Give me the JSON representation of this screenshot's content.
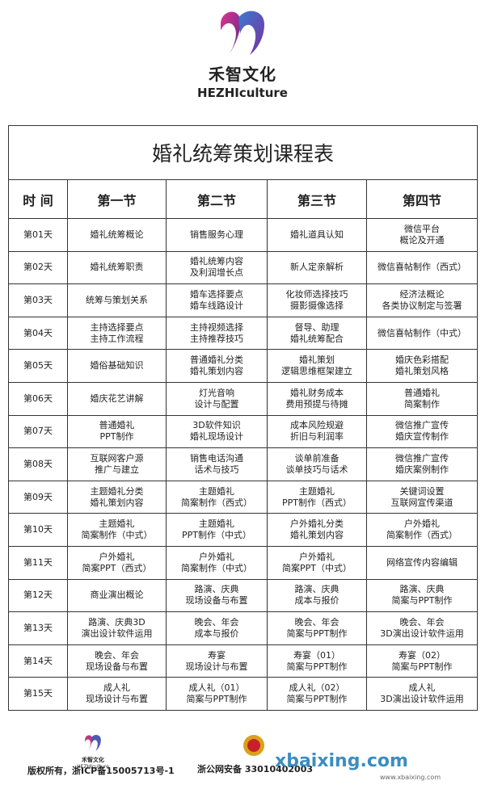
{
  "header": {
    "brand": "禾智文化",
    "brand_en": "HEZHIculture"
  },
  "table": {
    "title": "婚礼统筹策划课程表",
    "columns": [
      "时 间",
      "第一节",
      "第二节",
      "第三节",
      "第四节"
    ],
    "rows": [
      [
        "第01天",
        "婚礼统筹概论",
        "销售服务心理",
        "婚礼道具认知",
        "微信平台\n概论及开通"
      ],
      [
        "第02天",
        "婚礼统筹职责",
        "婚礼统筹内容\n及利润增长点",
        "新人定亲解析",
        "微信喜帖制作（西式）"
      ],
      [
        "第03天",
        "统筹与策划关系",
        "婚车选择要点\n婚车线路设计",
        "化妆师选择技巧\n摄影摄像选择",
        "经济法概论\n各类协议制定与签署"
      ],
      [
        "第04天",
        "主持选择要点\n主持工作流程",
        "主持视频选择\n主持推荐技巧",
        "督导、助理\n婚礼统筹配合",
        "微信喜帖制作（中式）"
      ],
      [
        "第05天",
        "婚俗基础知识",
        "普通婚礼分类\n婚礼策划内容",
        "婚礼策划\n逻辑思维框架建立",
        "婚庆色彩搭配\n婚礼策划风格"
      ],
      [
        "第06天",
        "婚庆花艺讲解",
        "灯光音响\n设计与配置",
        "婚礼财务成本\n费用预提与待摊",
        "普通婚礼\n简案制作"
      ],
      [
        "第07天",
        "普通婚礼\nPPT制作",
        "3D软件知识\n婚礼现场设计",
        "成本风险规避\n折旧与利润率",
        "微信推广宣传\n婚庆宣传制作"
      ],
      [
        "第08天",
        "互联网客户源\n推广与建立",
        "销售电话沟通\n话术与技巧",
        "谈单前准备\n谈单技巧与话术",
        "微信推广宣传\n婚庆案例制作"
      ],
      [
        "第09天",
        "主题婚礼分类\n婚礼策划内容",
        "主题婚礼\n简案制作（西式）",
        "主题婚礼\nPPT制作（西式）",
        "关键词设置\n互联网宣传渠道"
      ],
      [
        "第10天",
        "主题婚礼\n简案制作（中式）",
        "主题婚礼\nPPT制作（中式）",
        "户外婚礼分类\n婚礼策划内容",
        "户外婚礼\n简案制作（西式）"
      ],
      [
        "第11天",
        "户外婚礼\n简案PPT（西式）",
        "户外婚礼\n简案制作（中式）",
        "户外婚礼\n简案PPT（中式）",
        "网络宣传内容编辑"
      ],
      [
        "第12天",
        "商业演出概论",
        "路演、庆典\n现场设备与布置",
        "路演、庆典\n成本与报价",
        "路演、庆典\n简案与PPT制作"
      ],
      [
        "第13天",
        "路演、庆典3D\n演出设计软件运用",
        "晚会、年会\n成本与报价",
        "晚会、年会\n简案与PPT制作",
        "晚会、年会\n3D演出设计软件运用"
      ],
      [
        "第14天",
        "晚会、年会\n现场设备与布置",
        "寿宴\n现场设计与布置",
        "寿宴（01）\n简案与PPT制作",
        "寿宴（02）\n简案与PPT制作"
      ],
      [
        "第15天",
        "成人礼\n现场设计与布置",
        "成人礼（01）\n简案与PPT制作",
        "成人礼（02）\n简案与PPT制作",
        "成人礼\n3D演出设计软件运用"
      ]
    ]
  },
  "footer": {
    "brand": "禾智文化",
    "brand_en": "HEZHIculture",
    "copyright": "版权所有，浙ICP备15005713号-1",
    "police": "浙公网安备 33010402003",
    "watermark": "xbaixing.com",
    "watermark_url": "www.xbaixing.com"
  }
}
